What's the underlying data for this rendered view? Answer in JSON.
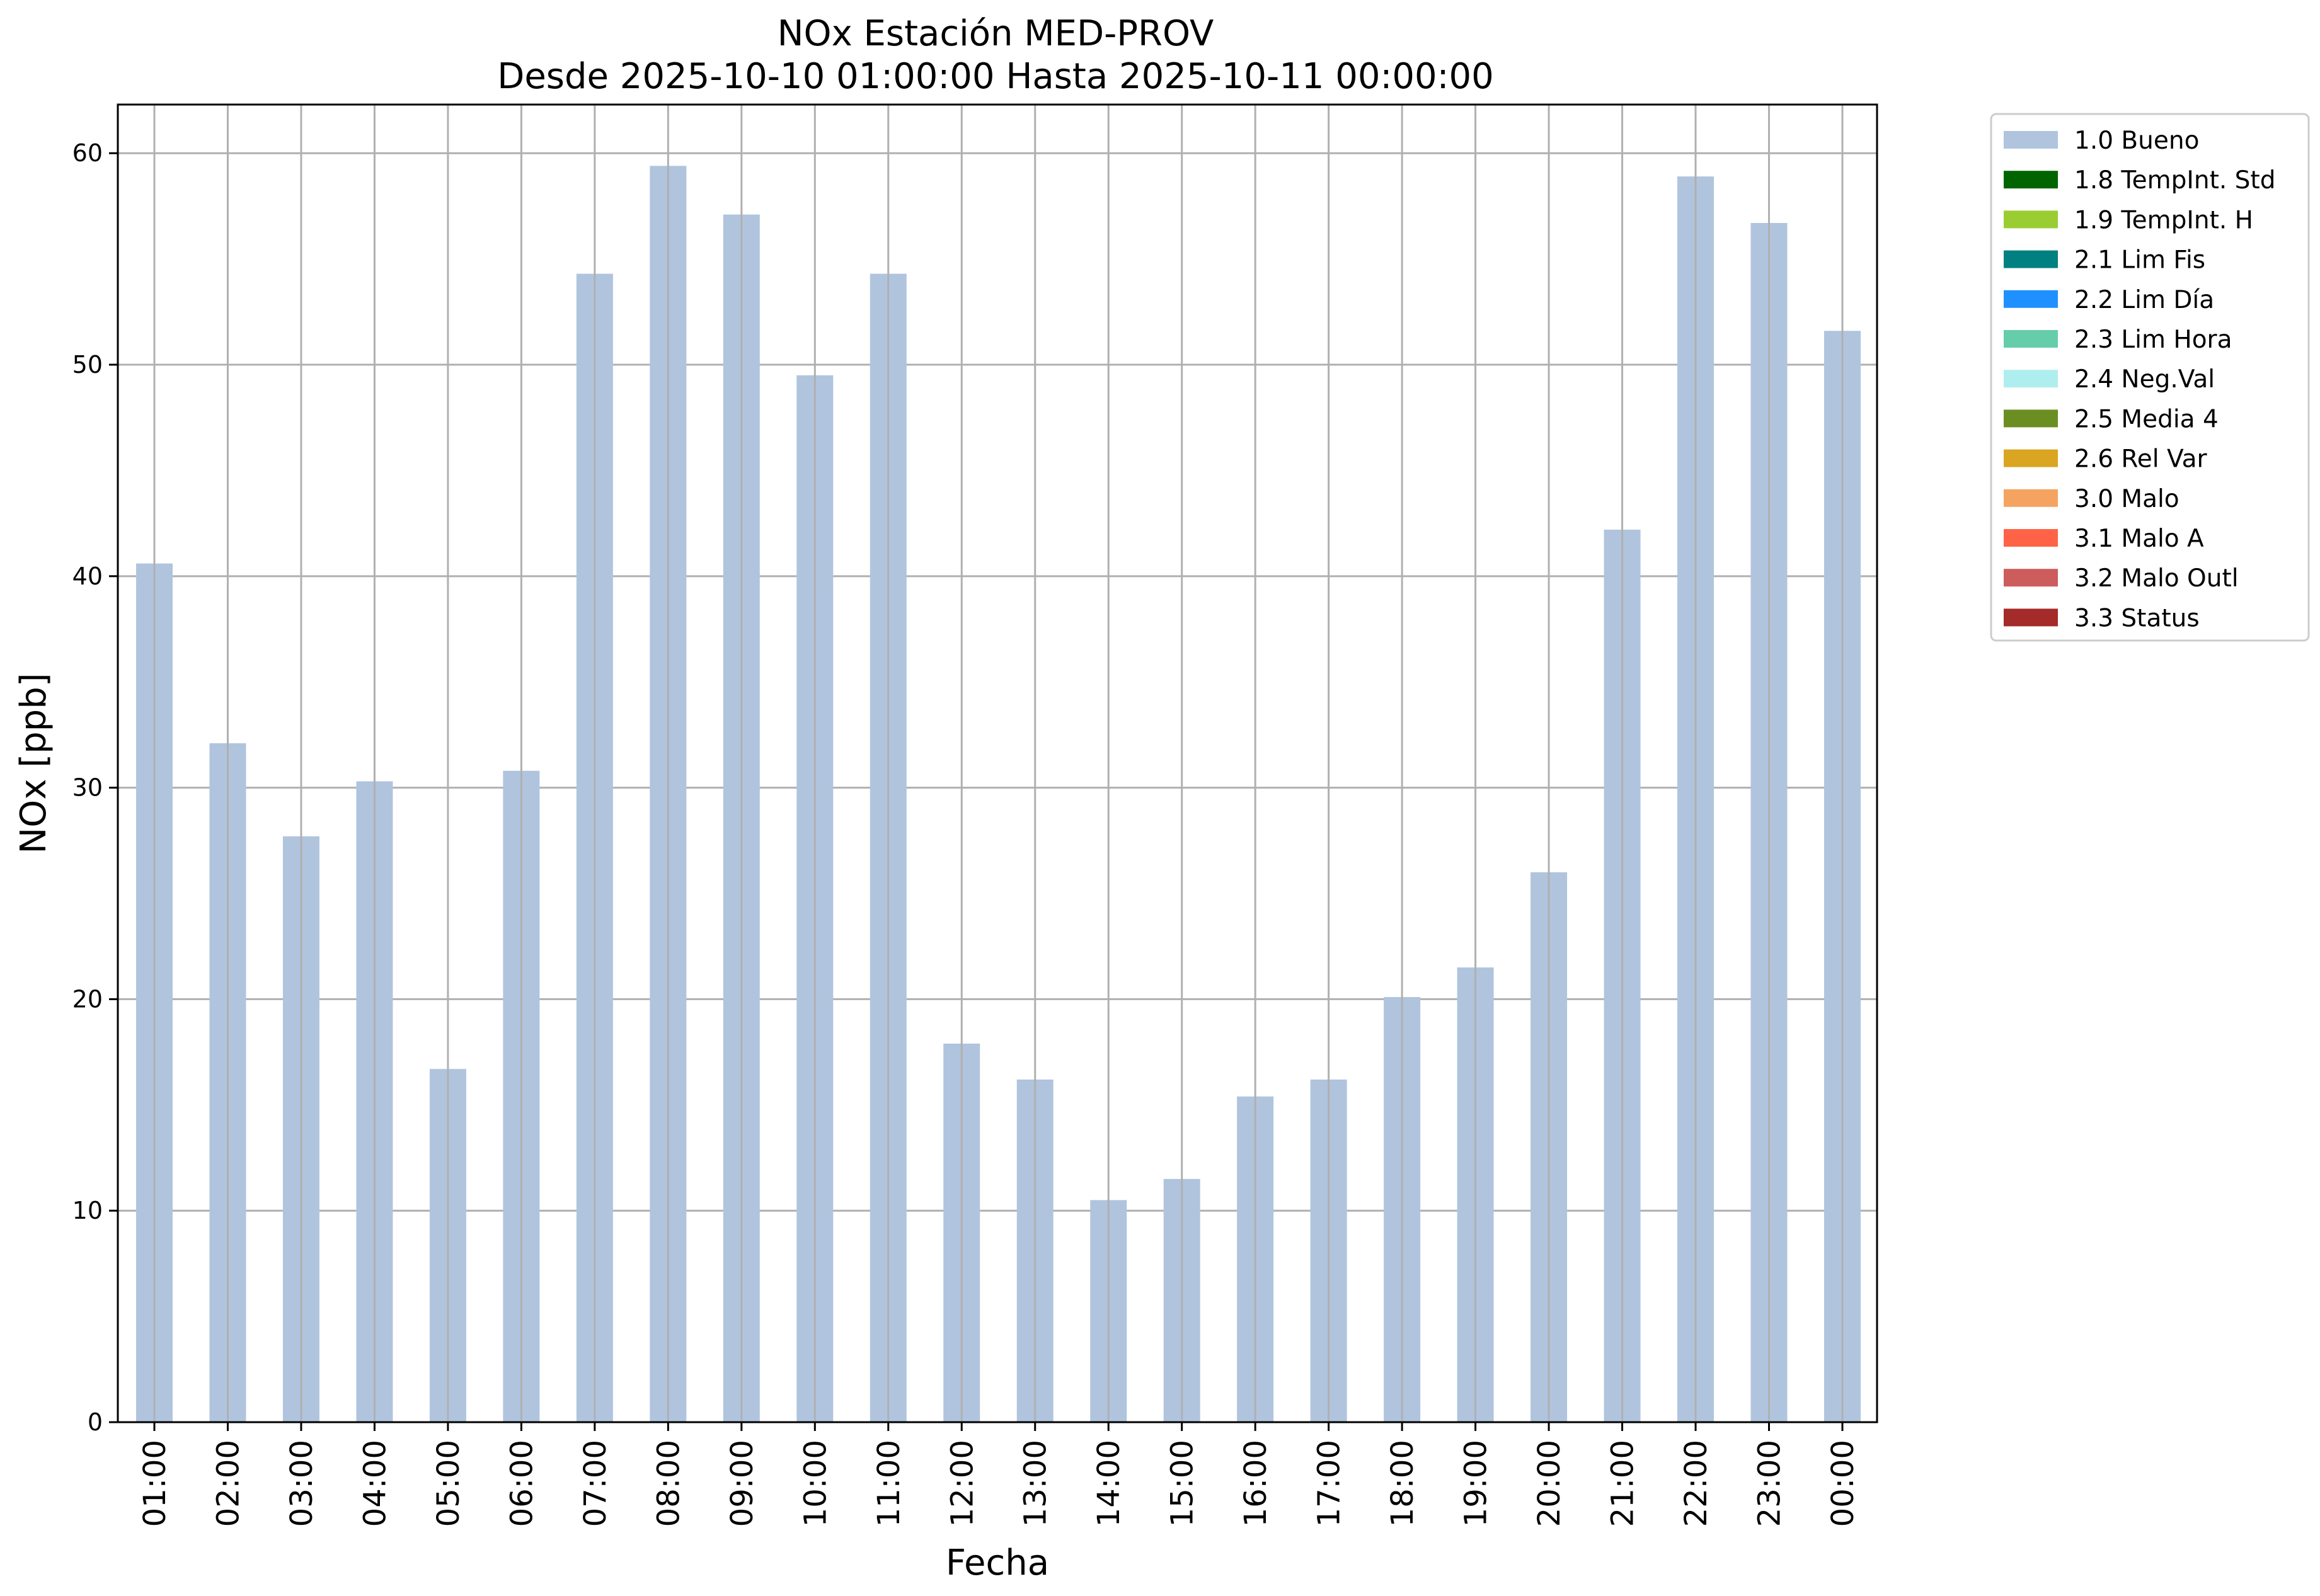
{
  "chart_data": {
    "type": "bar",
    "title": "NOx Estación MED-PROV",
    "subtitle": "Desde 2025-10-10 01:00:00 Hasta 2025-10-11 00:00:00",
    "xlabel": "Fecha",
    "ylabel": "NOx [ppb]",
    "ylim": [
      0,
      62.3
    ],
    "yticks": [
      0,
      10,
      20,
      30,
      40,
      50,
      60
    ],
    "grid": true,
    "legend_position": "outside-right-top",
    "categories": [
      "01:00",
      "02:00",
      "03:00",
      "04:00",
      "05:00",
      "06:00",
      "07:00",
      "08:00",
      "09:00",
      "10:00",
      "11:00",
      "12:00",
      "13:00",
      "14:00",
      "15:00",
      "16:00",
      "17:00",
      "18:00",
      "19:00",
      "20:00",
      "21:00",
      "22:00",
      "23:00",
      "00:00"
    ],
    "series": [
      {
        "name": "1.0 Bueno",
        "color": "#b0c4de",
        "values": [
          40.6,
          32.1,
          27.7,
          30.3,
          16.7,
          30.8,
          54.3,
          59.4,
          57.1,
          49.5,
          54.3,
          17.9,
          16.2,
          10.5,
          11.5,
          15.4,
          16.2,
          20.1,
          21.5,
          26.0,
          42.2,
          58.9,
          56.7,
          51.6
        ]
      }
    ],
    "legend": [
      {
        "label": "1.0 Bueno",
        "color": "#b0c4de"
      },
      {
        "label": "1.8 TempInt. Std",
        "color": "#006400"
      },
      {
        "label": "1.9 TempInt. H",
        "color": "#9acd32"
      },
      {
        "label": "2.1 Lim Fis",
        "color": "#008080"
      },
      {
        "label": "2.2 Lim Día",
        "color": "#1e90ff"
      },
      {
        "label": "2.3 Lim Hora",
        "color": "#66cdaa"
      },
      {
        "label": "2.4 Neg.Val",
        "color": "#afeeee"
      },
      {
        "label": "2.5 Media 4",
        "color": "#6b8e23"
      },
      {
        "label": "2.6 Rel Var",
        "color": "#daa520"
      },
      {
        "label": "3.0 Malo",
        "color": "#f4a460"
      },
      {
        "label": "3.1 Malo A",
        "color": "#ff6347"
      },
      {
        "label": "3.2 Malo Outl",
        "color": "#cd5c5c"
      },
      {
        "label": "3.3 Status",
        "color": "#a52a2a"
      }
    ]
  }
}
